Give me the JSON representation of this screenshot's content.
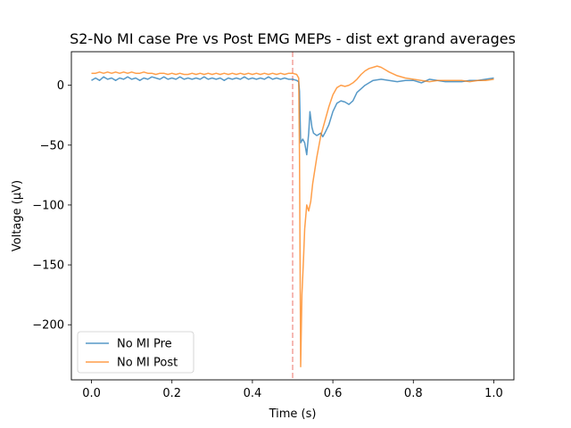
{
  "chart_data": {
    "type": "line",
    "title": "S2-No MI case Pre vs Post EMG MEPs - dist ext grand averages",
    "xlabel": "Time (s)",
    "ylabel": "Voltage (µV)",
    "xlim": [
      -0.05,
      1.05
    ],
    "ylim": [
      -246,
      28
    ],
    "xticks": [
      0.0,
      0.2,
      0.4,
      0.6,
      0.8,
      1.0
    ],
    "xtick_labels": [
      "0.0",
      "0.2",
      "0.4",
      "0.6",
      "0.8",
      "1.0"
    ],
    "yticks": [
      0,
      -50,
      -100,
      -150,
      -200
    ],
    "ytick_labels": [
      "0",
      "−50",
      "−100",
      "−150",
      "−200"
    ],
    "grid": false,
    "legend_position": "lower-left",
    "vline": {
      "x": 0.5,
      "color": "#f4a09a",
      "style": "dashed"
    },
    "series": [
      {
        "name": "No MI Pre",
        "color": "#1f77b4",
        "points": [
          [
            0.0,
            4
          ],
          [
            0.01,
            6
          ],
          [
            0.02,
            4
          ],
          [
            0.03,
            7
          ],
          [
            0.04,
            5
          ],
          [
            0.05,
            6
          ],
          [
            0.06,
            4
          ],
          [
            0.07,
            6
          ],
          [
            0.08,
            5
          ],
          [
            0.09,
            7
          ],
          [
            0.1,
            5
          ],
          [
            0.11,
            6
          ],
          [
            0.12,
            4
          ],
          [
            0.13,
            6
          ],
          [
            0.14,
            5
          ],
          [
            0.15,
            7
          ],
          [
            0.16,
            6
          ],
          [
            0.17,
            5
          ],
          [
            0.18,
            7
          ],
          [
            0.19,
            5
          ],
          [
            0.2,
            6
          ],
          [
            0.21,
            5
          ],
          [
            0.22,
            7
          ],
          [
            0.23,
            5
          ],
          [
            0.24,
            6
          ],
          [
            0.25,
            5
          ],
          [
            0.26,
            6
          ],
          [
            0.27,
            5
          ],
          [
            0.28,
            7
          ],
          [
            0.29,
            5
          ],
          [
            0.3,
            6
          ],
          [
            0.31,
            5
          ],
          [
            0.32,
            6
          ],
          [
            0.33,
            4
          ],
          [
            0.34,
            6
          ],
          [
            0.35,
            5
          ],
          [
            0.36,
            6
          ],
          [
            0.37,
            5
          ],
          [
            0.38,
            7
          ],
          [
            0.39,
            5
          ],
          [
            0.4,
            6
          ],
          [
            0.41,
            5
          ],
          [
            0.42,
            6
          ],
          [
            0.43,
            5
          ],
          [
            0.44,
            7
          ],
          [
            0.45,
            5
          ],
          [
            0.46,
            6
          ],
          [
            0.47,
            5
          ],
          [
            0.48,
            6
          ],
          [
            0.49,
            5
          ],
          [
            0.5,
            5
          ],
          [
            0.51,
            4
          ],
          [
            0.515,
            3
          ],
          [
            0.517,
            -5
          ],
          [
            0.52,
            -48
          ],
          [
            0.525,
            -45
          ],
          [
            0.53,
            -48
          ],
          [
            0.535,
            -58
          ],
          [
            0.54,
            -40
          ],
          [
            0.543,
            -22
          ],
          [
            0.548,
            -35
          ],
          [
            0.552,
            -40
          ],
          [
            0.56,
            -42
          ],
          [
            0.57,
            -40
          ],
          [
            0.575,
            -43
          ],
          [
            0.58,
            -40
          ],
          [
            0.59,
            -33
          ],
          [
            0.6,
            -22
          ],
          [
            0.61,
            -15
          ],
          [
            0.62,
            -13
          ],
          [
            0.63,
            -14
          ],
          [
            0.64,
            -16
          ],
          [
            0.65,
            -13
          ],
          [
            0.66,
            -6
          ],
          [
            0.67,
            -3
          ],
          [
            0.68,
            0
          ],
          [
            0.69,
            2
          ],
          [
            0.7,
            4
          ],
          [
            0.72,
            5
          ],
          [
            0.74,
            4
          ],
          [
            0.76,
            3
          ],
          [
            0.78,
            4
          ],
          [
            0.8,
            4
          ],
          [
            0.82,
            2
          ],
          [
            0.84,
            5
          ],
          [
            0.86,
            4
          ],
          [
            0.88,
            3
          ],
          [
            0.9,
            3
          ],
          [
            0.92,
            3
          ],
          [
            0.94,
            4
          ],
          [
            0.96,
            4
          ],
          [
            0.98,
            5
          ],
          [
            1.0,
            6
          ]
        ]
      },
      {
        "name": "No MI Post",
        "color": "#ff7f0e",
        "points": [
          [
            0.0,
            10
          ],
          [
            0.01,
            10
          ],
          [
            0.02,
            11
          ],
          [
            0.03,
            10
          ],
          [
            0.04,
            11
          ],
          [
            0.05,
            10
          ],
          [
            0.06,
            11
          ],
          [
            0.07,
            10
          ],
          [
            0.08,
            11
          ],
          [
            0.09,
            10
          ],
          [
            0.1,
            11
          ],
          [
            0.11,
            10
          ],
          [
            0.12,
            10
          ],
          [
            0.13,
            11
          ],
          [
            0.14,
            10
          ],
          [
            0.15,
            10
          ],
          [
            0.16,
            9
          ],
          [
            0.17,
            10
          ],
          [
            0.18,
            10
          ],
          [
            0.19,
            9
          ],
          [
            0.2,
            10
          ],
          [
            0.21,
            9
          ],
          [
            0.22,
            10
          ],
          [
            0.23,
            9
          ],
          [
            0.24,
            9
          ],
          [
            0.25,
            10
          ],
          [
            0.26,
            9
          ],
          [
            0.27,
            10
          ],
          [
            0.28,
            9
          ],
          [
            0.29,
            10
          ],
          [
            0.3,
            9
          ],
          [
            0.31,
            10
          ],
          [
            0.32,
            9
          ],
          [
            0.33,
            10
          ],
          [
            0.34,
            9
          ],
          [
            0.35,
            10
          ],
          [
            0.36,
            9
          ],
          [
            0.37,
            10
          ],
          [
            0.38,
            9
          ],
          [
            0.39,
            10
          ],
          [
            0.4,
            9
          ],
          [
            0.41,
            10
          ],
          [
            0.42,
            9
          ],
          [
            0.43,
            10
          ],
          [
            0.44,
            9
          ],
          [
            0.45,
            10
          ],
          [
            0.46,
            9
          ],
          [
            0.47,
            10
          ],
          [
            0.48,
            9
          ],
          [
            0.49,
            10
          ],
          [
            0.5,
            10
          ],
          [
            0.51,
            9
          ],
          [
            0.515,
            6
          ],
          [
            0.517,
            -60
          ],
          [
            0.52,
            -235
          ],
          [
            0.523,
            -175
          ],
          [
            0.527,
            -145
          ],
          [
            0.53,
            -120
          ],
          [
            0.535,
            -100
          ],
          [
            0.54,
            -105
          ],
          [
            0.545,
            -97
          ],
          [
            0.55,
            -82
          ],
          [
            0.56,
            -60
          ],
          [
            0.57,
            -42
          ],
          [
            0.58,
            -30
          ],
          [
            0.59,
            -18
          ],
          [
            0.6,
            -8
          ],
          [
            0.61,
            -2
          ],
          [
            0.62,
            0
          ],
          [
            0.63,
            -1
          ],
          [
            0.64,
            0
          ],
          [
            0.65,
            2
          ],
          [
            0.66,
            5
          ],
          [
            0.67,
            9
          ],
          [
            0.68,
            12
          ],
          [
            0.69,
            14
          ],
          [
            0.7,
            15
          ],
          [
            0.71,
            16
          ],
          [
            0.72,
            15
          ],
          [
            0.73,
            13
          ],
          [
            0.74,
            11
          ],
          [
            0.76,
            8
          ],
          [
            0.78,
            6
          ],
          [
            0.8,
            5
          ],
          [
            0.82,
            4
          ],
          [
            0.84,
            3
          ],
          [
            0.86,
            4
          ],
          [
            0.88,
            4
          ],
          [
            0.9,
            4
          ],
          [
            0.92,
            4
          ],
          [
            0.94,
            3
          ],
          [
            0.96,
            4
          ],
          [
            0.98,
            4
          ],
          [
            1.0,
            5
          ]
        ]
      }
    ]
  }
}
